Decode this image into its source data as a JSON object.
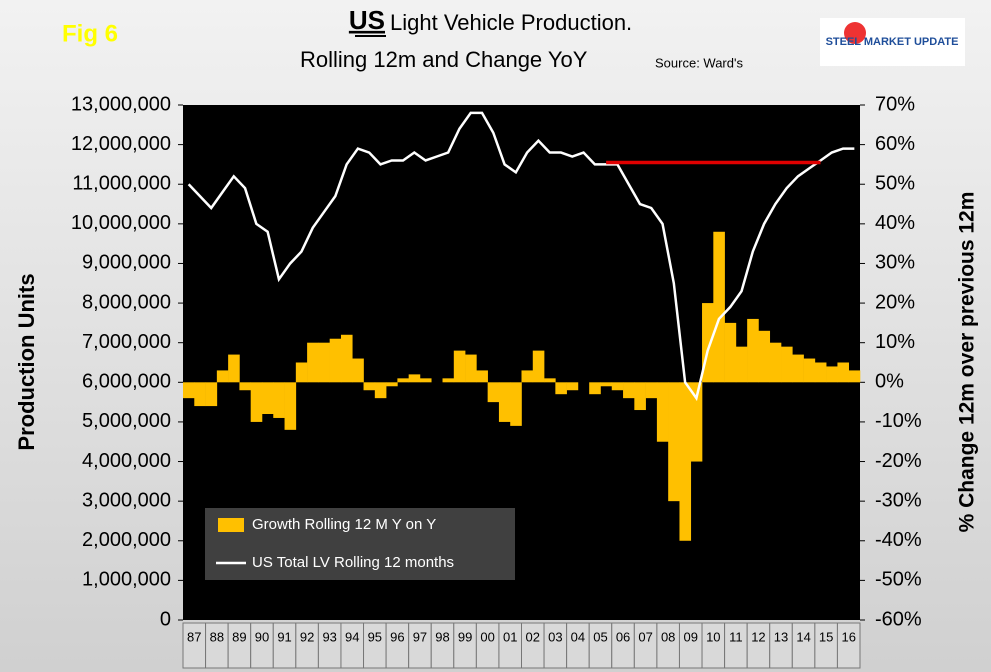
{
  "fig_label": "Fig 6",
  "logo": "STEEL MARKET UPDATE",
  "chart_data": {
    "type": "bar-line",
    "title_emphasis": "US",
    "title": "Light Vehicle Production.",
    "subtitle": "Rolling 12m and Change YoY",
    "source": "Source: Ward's",
    "y_label": "Production Units",
    "y2_label": "% Change 12m over previous 12m",
    "categories": [
      "87",
      null,
      "88",
      null,
      "89",
      null,
      "90",
      null,
      "91",
      null,
      "92",
      null,
      "93",
      null,
      "94",
      null,
      "95",
      null,
      "96",
      null,
      "97",
      null,
      "98",
      null,
      "99",
      null,
      "00",
      null,
      "01",
      null,
      "02",
      null,
      "03",
      null,
      "04",
      null,
      "05",
      null,
      "06",
      null,
      "07",
      null,
      "08",
      null,
      "09",
      null,
      "10",
      null,
      "11",
      null,
      "12",
      null,
      "13",
      null,
      "14",
      null,
      "15",
      null,
      "16",
      null
    ],
    "series": [
      {
        "name": "Growth Rolling 12 M Y on Y",
        "color": "#ffc000",
        "kind": "bar",
        "axis": "y2",
        "values": [
          -4,
          -6,
          -6,
          3,
          7,
          -2,
          -10,
          -8,
          -9,
          -12,
          5,
          10,
          10,
          11,
          12,
          6,
          -2,
          -4,
          -1,
          1,
          2,
          1,
          0,
          1,
          8,
          7,
          3,
          -5,
          -10,
          -11,
          3,
          8,
          1,
          -3,
          -2,
          0,
          -3,
          -1,
          -2,
          -4,
          -7,
          -4,
          -15,
          -30,
          -40,
          -20,
          20,
          38,
          15,
          9,
          16,
          13,
          10,
          9,
          7,
          6,
          5,
          4,
          5,
          3
        ]
      },
      {
        "name": "US Total LV Rolling 12 months",
        "color": "#ffffff",
        "kind": "line",
        "values": [
          11000000,
          10700000,
          10400000,
          10800000,
          11200000,
          10900000,
          10000000,
          9800000,
          8600000,
          9000000,
          9300000,
          9900000,
          10300000,
          10700000,
          11500000,
          11900000,
          11800000,
          11500000,
          11600000,
          11600000,
          11800000,
          11600000,
          11700000,
          11800000,
          12400000,
          12800000,
          12800000,
          12300000,
          11500000,
          11300000,
          11800000,
          12100000,
          11800000,
          11800000,
          11700000,
          11800000,
          11500000,
          11500000,
          11500000,
          11000000,
          10500000,
          10400000,
          10000000,
          8500000,
          6000000,
          5600000,
          6800000,
          7600000,
          7900000,
          8300000,
          9300000,
          10000000,
          10500000,
          10900000,
          11200000,
          11400000,
          11600000,
          11800000,
          11900000,
          11900000
        ]
      },
      {
        "color": "#e00000",
        "kind": "line",
        "values": [
          null,
          null,
          null,
          null,
          null,
          null,
          null,
          null,
          null,
          null,
          null,
          null,
          null,
          null,
          null,
          null,
          null,
          null,
          null,
          null,
          null,
          null,
          null,
          null,
          null,
          null,
          null,
          null,
          null,
          null,
          null,
          null,
          null,
          null,
          null,
          null,
          null,
          11550000,
          11550000,
          11550000,
          11550000,
          11550000,
          11550000,
          11550000,
          11550000,
          11550000,
          11550000,
          11550000,
          11550000,
          11550000,
          11550000,
          11550000,
          11550000,
          11550000,
          11550000,
          11550000,
          11550000,
          null,
          null,
          null
        ]
      }
    ],
    "ylim": [
      0,
      13000000
    ],
    "yticks": [
      0,
      {
        "value": 1000000,
        "label": "1,000,000"
      },
      {
        "value": 2000000,
        "label": "2,000,000"
      },
      {
        "value": 3000000,
        "label": "3,000,000"
      },
      {
        "value": 4000000,
        "label": "4,000,000"
      },
      {
        "value": 5000000,
        "label": "5,000,000"
      },
      {
        "value": 6000000,
        "label": "6,000,000"
      },
      {
        "value": 7000000,
        "label": "7,000,000"
      },
      {
        "value": 8000000,
        "label": "8,000,000"
      },
      {
        "value": 9000000,
        "label": "9,000,000"
      },
      {
        "value": 10000000,
        "label": "10,000,000"
      },
      {
        "value": 11000000,
        "label": "11,000,000"
      },
      {
        "value": 12000000,
        "label": "12,000,000"
      },
      {
        "value": 13000000,
        "label": "13,000,000"
      }
    ],
    "y2lim": [
      -60,
      70
    ],
    "y2ticks": [
      {
        "value": -60,
        "label": "-60%"
      },
      {
        "value": -50,
        "label": "-50%"
      },
      {
        "value": -40,
        "label": "-40%"
      },
      {
        "value": -30,
        "label": "-30%"
      },
      {
        "value": -20,
        "label": "-20%"
      },
      {
        "value": -10,
        "label": "-10%"
      },
      {
        "value": 0,
        "label": "0%"
      },
      {
        "value": 10,
        "label": "10%"
      },
      {
        "value": 20,
        "label": "20%"
      },
      {
        "value": 30,
        "label": "30%"
      },
      {
        "value": 40,
        "label": "40%"
      },
      {
        "value": 50,
        "label": "50%"
      },
      {
        "value": 60,
        "label": "60%"
      },
      {
        "value": 70,
        "label": "70%"
      }
    ],
    "background": "#000000"
  }
}
